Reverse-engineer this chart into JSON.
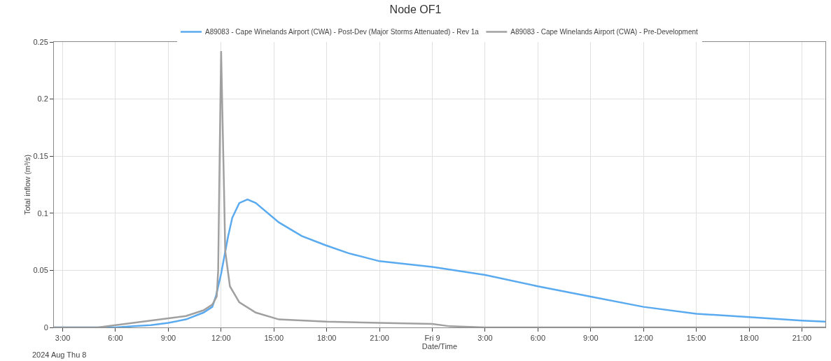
{
  "chart_data": {
    "type": "line",
    "title": "Node OF1",
    "xlabel": "Date/Time",
    "ylabel": "Total inflow (m³/s)",
    "annotations": [
      "2024 Aug Thu 8"
    ],
    "xlim": [
      "2024-08-08T02:30",
      "2024-08-09T22:20"
    ],
    "xticks": [
      {
        "value": "2024-08-08T03:00",
        "label": "3:00"
      },
      {
        "value": "2024-08-08T06:00",
        "label": "6:00"
      },
      {
        "value": "2024-08-08T09:00",
        "label": "9:00"
      },
      {
        "value": "2024-08-08T12:00",
        "label": "12:00"
      },
      {
        "value": "2024-08-08T15:00",
        "label": "15:00"
      },
      {
        "value": "2024-08-08T18:00",
        "label": "18:00"
      },
      {
        "value": "2024-08-08T21:00",
        "label": "21:00"
      },
      {
        "value": "2024-08-09T00:00",
        "label": "Fri 9"
      },
      {
        "value": "2024-08-09T03:00",
        "label": "3:00"
      },
      {
        "value": "2024-08-09T06:00",
        "label": "6:00"
      },
      {
        "value": "2024-08-09T09:00",
        "label": "9:00"
      },
      {
        "value": "2024-08-09T12:00",
        "label": "12:00"
      },
      {
        "value": "2024-08-09T15:00",
        "label": "15:00"
      },
      {
        "value": "2024-08-09T18:00",
        "label": "18:00"
      },
      {
        "value": "2024-08-09T21:00",
        "label": "21:00"
      }
    ],
    "ylim": [
      0,
      0.25
    ],
    "yticks": [
      0,
      0.05,
      0.1,
      0.15,
      0.2,
      0.25
    ],
    "grid": true,
    "legend": "top",
    "marker": "none",
    "line_style": "solid",
    "series": [
      {
        "name": "A89083 - Cape Winelands Airport (CWA) - Post-Dev (Major Storms Attenuated) - Rev 1a",
        "color": "#5aaaf0",
        "x": [
          "2024-08-08T02:30",
          "2024-08-08T06:00",
          "2024-08-08T07:00",
          "2024-08-08T08:00",
          "2024-08-08T09:00",
          "2024-08-08T10:00",
          "2024-08-08T11:00",
          "2024-08-08T11:30",
          "2024-08-08T11:43",
          "2024-08-08T12:00",
          "2024-08-08T12:24",
          "2024-08-08T12:38",
          "2024-08-08T13:02",
          "2024-08-08T13:30",
          "2024-08-08T13:58",
          "2024-08-08T15:17",
          "2024-08-08T16:35",
          "2024-08-08T17:56",
          "2024-08-08T19:14",
          "2024-08-08T21:00",
          "2024-08-09T00:00",
          "2024-08-09T03:00",
          "2024-08-09T06:00",
          "2024-08-09T09:00",
          "2024-08-09T12:00",
          "2024-08-09T15:00",
          "2024-08-09T18:00",
          "2024-08-09T21:00",
          "2024-08-09T22:20"
        ],
        "values": [
          0.0,
          0.0,
          0.001,
          0.002,
          0.004,
          0.007,
          0.013,
          0.018,
          0.028,
          0.047,
          0.08,
          0.096,
          0.109,
          0.112,
          0.109,
          0.092,
          0.08,
          0.072,
          0.065,
          0.058,
          0.053,
          0.046,
          0.036,
          0.027,
          0.018,
          0.012,
          0.009,
          0.006,
          0.005
        ]
      },
      {
        "name": "A89083 - Cape Winelands Airport (CWA) - Pre-Development",
        "color": "#a0a0a0",
        "x": [
          "2024-08-08T02:30",
          "2024-08-08T05:00",
          "2024-08-08T06:00",
          "2024-08-08T07:00",
          "2024-08-08T08:00",
          "2024-08-08T09:00",
          "2024-08-08T10:00",
          "2024-08-08T11:00",
          "2024-08-08T11:30",
          "2024-08-08T11:45",
          "2024-08-08T11:50",
          "2024-08-08T11:55",
          "2024-08-08T12:00",
          "2024-08-08T12:05",
          "2024-08-08T12:10",
          "2024-08-08T12:14",
          "2024-08-08T12:30",
          "2024-08-08T13:02",
          "2024-08-08T13:58",
          "2024-08-08T15:17",
          "2024-08-08T18:00",
          "2024-08-08T21:00",
          "2024-08-09T00:00",
          "2024-08-09T01:00",
          "2024-08-09T03:00",
          "2024-08-09T22:20"
        ],
        "values": [
          0.0,
          0.0,
          0.002,
          0.004,
          0.006,
          0.008,
          0.01,
          0.015,
          0.02,
          0.027,
          0.05,
          0.15,
          0.242,
          0.18,
          0.12,
          0.067,
          0.036,
          0.022,
          0.013,
          0.007,
          0.005,
          0.004,
          0.003,
          0.001,
          0.0,
          0.0
        ]
      }
    ]
  }
}
